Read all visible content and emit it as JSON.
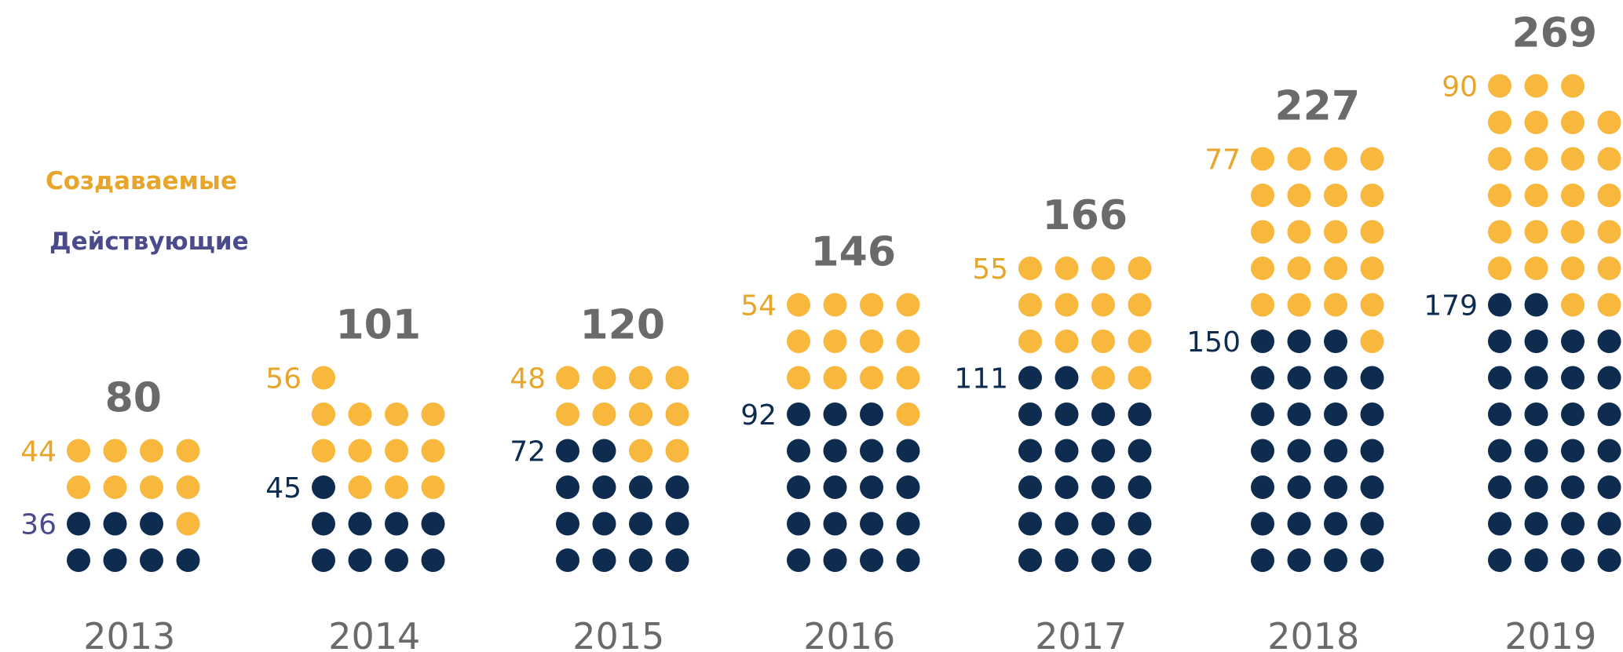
{
  "colors": {
    "created": "#F8B73D",
    "active": "#0E2B50",
    "total_label": "#6A6A6A",
    "created_label": "#E7A62A",
    "active_label": "#4A4A8C",
    "year_label": "#6A6A6A"
  },
  "legend": {
    "created": "Создаваемые",
    "active": "Действующие"
  },
  "chart_data": {
    "type": "bar",
    "categories": [
      "2013",
      "2014",
      "2015",
      "2016",
      "2017",
      "2018",
      "2019"
    ],
    "series": [
      {
        "name": "Создаваемые",
        "values": [
          44,
          56,
          48,
          54,
          55,
          77,
          90
        ]
      },
      {
        "name": "Действующие",
        "values": [
          36,
          45,
          72,
          92,
          111,
          150,
          179
        ]
      }
    ],
    "totals": [
      80,
      101,
      120,
      146,
      166,
      227,
      269
    ],
    "labels": {
      "created": [
        "44",
        "56",
        "48",
        "54",
        "55",
        "77",
        "90"
      ],
      "active": [
        "36",
        "45",
        "72",
        "92",
        "111",
        "150",
        "179"
      ],
      "totals": [
        "80",
        "101",
        "120",
        "146",
        "166",
        "227",
        "269"
      ]
    },
    "dots_created": [
      9,
      12,
      10,
      13,
      14,
      21,
      25
    ],
    "dots_active": [
      7,
      9,
      14,
      19,
      22,
      27,
      30
    ],
    "legend_position": "left"
  }
}
